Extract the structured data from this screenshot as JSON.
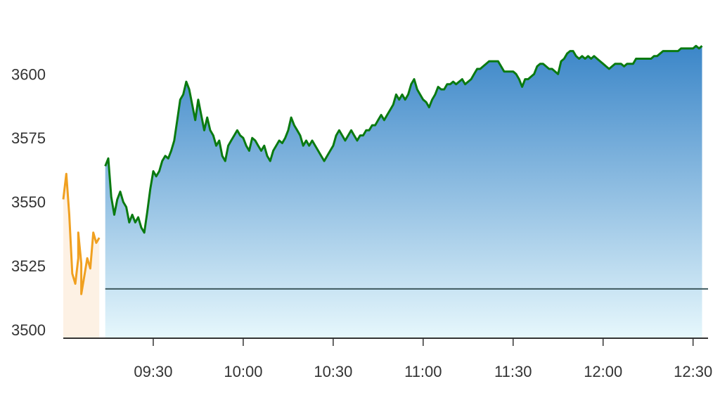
{
  "colors": {
    "premarket_line": "#f0a020",
    "premarket_fill": "#fdf1e4",
    "main_line": "#0a7a10",
    "fill_top": "#3b86c8",
    "fill_bottom": "#e6f7fc",
    "baseline": "#3f5a5f",
    "axis": "#333333"
  },
  "chart_data": {
    "type": "area",
    "title": "",
    "xlabel": "",
    "ylabel": "",
    "ylim": [
      3497,
      3613
    ],
    "xlim": [
      "09:00",
      "12:35"
    ],
    "grid": false,
    "y_ticks": [
      {
        "value": 3500,
        "label": "3500"
      },
      {
        "value": 3525,
        "label": "3525"
      },
      {
        "value": 3550,
        "label": "3550"
      },
      {
        "value": 3575,
        "label": "3575"
      },
      {
        "value": 3600,
        "label": "3600"
      }
    ],
    "x_ticks": [
      {
        "value": "09:30",
        "label": "09:30"
      },
      {
        "value": "10:00",
        "label": "10:00"
      },
      {
        "value": "10:30",
        "label": "10:30"
      },
      {
        "value": "11:00",
        "label": "11:00"
      },
      {
        "value": "11:30",
        "label": "11:30"
      },
      {
        "value": "12:00",
        "label": "12:00"
      },
      {
        "value": "12:30",
        "label": "12:30"
      }
    ],
    "baseline": 3516,
    "series": [
      {
        "points": [
          [
            "09:00",
            3551
          ],
          [
            "09:01",
            3561
          ],
          [
            "09:02",
            3545
          ],
          [
            "09:03",
            3522
          ],
          [
            "09:04",
            3518
          ],
          [
            "09:05",
            3528
          ],
          [
            "09:05",
            3538
          ],
          [
            "09:06",
            3526
          ],
          [
            "09:06",
            3514
          ],
          [
            "09:07",
            3521
          ],
          [
            "09:08",
            3528
          ],
          [
            "09:09",
            3524
          ],
          [
            "09:10",
            3538
          ],
          [
            "09:11",
            3534
          ],
          [
            "09:12",
            3536
          ]
        ]
      },
      {
        "points": [
          [
            "09:14",
            3564
          ],
          [
            "09:15",
            3567
          ],
          [
            "09:16",
            3552
          ],
          [
            "09:17",
            3545
          ],
          [
            "09:18",
            3551
          ],
          [
            "09:19",
            3554
          ],
          [
            "09:20",
            3550
          ],
          [
            "09:21",
            3548
          ],
          [
            "09:22",
            3542
          ],
          [
            "09:23",
            3545
          ],
          [
            "09:24",
            3542
          ],
          [
            "09:25",
            3544
          ],
          [
            "09:26",
            3540
          ],
          [
            "09:27",
            3538
          ],
          [
            "09:28",
            3546
          ],
          [
            "09:29",
            3555
          ],
          [
            "09:30",
            3562
          ],
          [
            "09:31",
            3560
          ],
          [
            "09:32",
            3562
          ],
          [
            "09:33",
            3566
          ],
          [
            "09:34",
            3568
          ],
          [
            "09:35",
            3567
          ],
          [
            "09:36",
            3570
          ],
          [
            "09:37",
            3574
          ],
          [
            "09:38",
            3582
          ],
          [
            "09:39",
            3590
          ],
          [
            "09:40",
            3592
          ],
          [
            "09:41",
            3597
          ],
          [
            "09:42",
            3594
          ],
          [
            "09:43",
            3588
          ],
          [
            "09:44",
            3582
          ],
          [
            "09:45",
            3590
          ],
          [
            "09:46",
            3584
          ],
          [
            "09:47",
            3578
          ],
          [
            "09:48",
            3583
          ],
          [
            "09:49",
            3578
          ],
          [
            "09:50",
            3576
          ],
          [
            "09:51",
            3572
          ],
          [
            "09:52",
            3574
          ],
          [
            "09:53",
            3568
          ],
          [
            "09:54",
            3566
          ],
          [
            "09:55",
            3572
          ],
          [
            "09:56",
            3574
          ],
          [
            "09:57",
            3576
          ],
          [
            "09:58",
            3578
          ],
          [
            "09:59",
            3576
          ],
          [
            "10:00",
            3575
          ],
          [
            "10:01",
            3572
          ],
          [
            "10:02",
            3570
          ],
          [
            "10:03",
            3575
          ],
          [
            "10:04",
            3574
          ],
          [
            "10:05",
            3572
          ],
          [
            "10:06",
            3570
          ],
          [
            "10:07",
            3572
          ],
          [
            "10:08",
            3568
          ],
          [
            "10:09",
            3566
          ],
          [
            "10:10",
            3570
          ],
          [
            "10:11",
            3572
          ],
          [
            "10:12",
            3574
          ],
          [
            "10:13",
            3573
          ],
          [
            "10:14",
            3575
          ],
          [
            "10:15",
            3578
          ],
          [
            "10:16",
            3583
          ],
          [
            "10:17",
            3580
          ],
          [
            "10:18",
            3578
          ],
          [
            "10:19",
            3576
          ],
          [
            "10:20",
            3572
          ],
          [
            "10:21",
            3574
          ],
          [
            "10:22",
            3572
          ],
          [
            "10:23",
            3574
          ],
          [
            "10:24",
            3572
          ],
          [
            "10:25",
            3570
          ],
          [
            "10:26",
            3568
          ],
          [
            "10:27",
            3566
          ],
          [
            "10:28",
            3568
          ],
          [
            "10:29",
            3570
          ],
          [
            "10:30",
            3572
          ],
          [
            "10:31",
            3576
          ],
          [
            "10:32",
            3578
          ],
          [
            "10:33",
            3576
          ],
          [
            "10:34",
            3574
          ],
          [
            "10:35",
            3576
          ],
          [
            "10:36",
            3578
          ],
          [
            "10:37",
            3576
          ],
          [
            "10:38",
            3574
          ],
          [
            "10:39",
            3576
          ],
          [
            "10:40",
            3576
          ],
          [
            "10:41",
            3578
          ],
          [
            "10:42",
            3578
          ],
          [
            "10:43",
            3580
          ],
          [
            "10:44",
            3580
          ],
          [
            "10:45",
            3582
          ],
          [
            "10:46",
            3584
          ],
          [
            "10:47",
            3582
          ],
          [
            "10:48",
            3584
          ],
          [
            "10:49",
            3586
          ],
          [
            "10:50",
            3588
          ],
          [
            "10:51",
            3592
          ],
          [
            "10:52",
            3590
          ],
          [
            "10:53",
            3592
          ],
          [
            "10:54",
            3590
          ],
          [
            "10:55",
            3592
          ],
          [
            "10:56",
            3596
          ],
          [
            "10:57",
            3598
          ],
          [
            "10:58",
            3594
          ],
          [
            "10:59",
            3592
          ],
          [
            "11:00",
            3590
          ],
          [
            "11:01",
            3589
          ],
          [
            "11:02",
            3587
          ],
          [
            "11:03",
            3590
          ],
          [
            "11:04",
            3592
          ],
          [
            "11:05",
            3595
          ],
          [
            "11:06",
            3594
          ],
          [
            "11:07",
            3594
          ],
          [
            "11:08",
            3596
          ],
          [
            "11:09",
            3596
          ],
          [
            "11:10",
            3597
          ],
          [
            "11:11",
            3596
          ],
          [
            "11:12",
            3597
          ],
          [
            "11:13",
            3598
          ],
          [
            "11:14",
            3596
          ],
          [
            "11:15",
            3597
          ],
          [
            "11:16",
            3598
          ],
          [
            "11:17",
            3600
          ],
          [
            "11:18",
            3602
          ],
          [
            "11:19",
            3602
          ],
          [
            "11:20",
            3603
          ],
          [
            "11:21",
            3604
          ],
          [
            "11:22",
            3605
          ],
          [
            "11:23",
            3605
          ],
          [
            "11:24",
            3605
          ],
          [
            "11:25",
            3605
          ],
          [
            "11:26",
            3603
          ],
          [
            "11:27",
            3601
          ],
          [
            "11:28",
            3601
          ],
          [
            "11:29",
            3601
          ],
          [
            "11:30",
            3601
          ],
          [
            "11:31",
            3600
          ],
          [
            "11:32",
            3598
          ],
          [
            "11:33",
            3595
          ],
          [
            "11:34",
            3598
          ],
          [
            "11:35",
            3598
          ],
          [
            "11:36",
            3599
          ],
          [
            "11:37",
            3600
          ],
          [
            "11:38",
            3603
          ],
          [
            "11:39",
            3604
          ],
          [
            "11:40",
            3604
          ],
          [
            "11:41",
            3603
          ],
          [
            "11:42",
            3602
          ],
          [
            "11:43",
            3602
          ],
          [
            "11:44",
            3601
          ],
          [
            "11:45",
            3600
          ],
          [
            "11:46",
            3605
          ],
          [
            "11:47",
            3606
          ],
          [
            "11:48",
            3608
          ],
          [
            "11:49",
            3609
          ],
          [
            "11:50",
            3609
          ],
          [
            "11:51",
            3607
          ],
          [
            "11:52",
            3606
          ],
          [
            "11:53",
            3607
          ],
          [
            "11:54",
            3606
          ],
          [
            "11:55",
            3607
          ],
          [
            "11:56",
            3606
          ],
          [
            "11:57",
            3607
          ],
          [
            "11:58",
            3606
          ],
          [
            "11:59",
            3605
          ],
          [
            "12:00",
            3604
          ],
          [
            "12:01",
            3603
          ],
          [
            "12:02",
            3602
          ],
          [
            "12:03",
            3603
          ],
          [
            "12:04",
            3604
          ],
          [
            "12:05",
            3604
          ],
          [
            "12:06",
            3604
          ],
          [
            "12:07",
            3603
          ],
          [
            "12:08",
            3604
          ],
          [
            "12:09",
            3604
          ],
          [
            "12:10",
            3604
          ],
          [
            "12:11",
            3606
          ],
          [
            "12:12",
            3606
          ],
          [
            "12:13",
            3606
          ],
          [
            "12:14",
            3606
          ],
          [
            "12:15",
            3606
          ],
          [
            "12:16",
            3606
          ],
          [
            "12:17",
            3607
          ],
          [
            "12:18",
            3607
          ],
          [
            "12:19",
            3608
          ],
          [
            "12:20",
            3609
          ],
          [
            "12:21",
            3609
          ],
          [
            "12:22",
            3609
          ],
          [
            "12:23",
            3609
          ],
          [
            "12:24",
            3609
          ],
          [
            "12:25",
            3609
          ],
          [
            "12:26",
            3610
          ],
          [
            "12:27",
            3610
          ],
          [
            "12:28",
            3610
          ],
          [
            "12:29",
            3610
          ],
          [
            "12:30",
            3610
          ],
          [
            "12:31",
            3611
          ],
          [
            "12:32",
            3610
          ],
          [
            "12:33",
            3611
          ]
        ]
      }
    ]
  }
}
